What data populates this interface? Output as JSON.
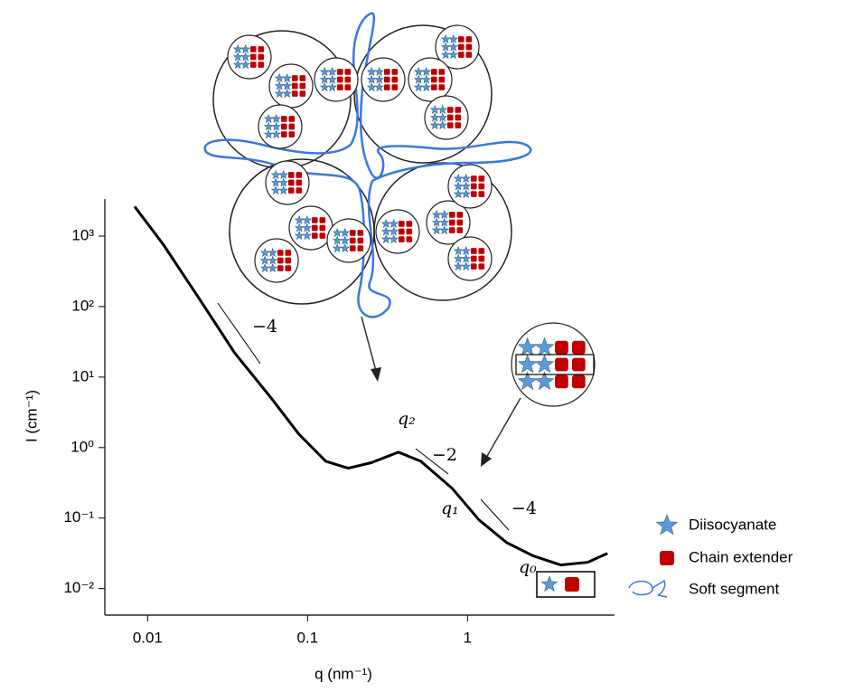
{
  "chart_data": {
    "type": "line",
    "xscale": "log",
    "yscale": "log",
    "color": "#000000",
    "x": [
      0.0083,
      0.0125,
      0.021,
      0.035,
      0.059,
      0.088,
      0.13,
      0.18,
      0.25,
      0.37,
      0.51,
      0.8,
      1.18,
      1.75,
      2.58,
      3.82,
      5.64,
      7.5
    ],
    "values": [
      2630,
      767,
      130,
      22,
      5.1,
      1.56,
      0.64,
      0.51,
      0.61,
      0.86,
      0.64,
      0.265,
      0.094,
      0.045,
      0.029,
      0.0216,
      0.0236,
      0.0316
    ],
    "xlim": [
      0.0054,
      8.3
    ],
    "ylim": [
      0.0042,
      3360
    ],
    "xticks": [
      0.01,
      0.1,
      1
    ],
    "yticks": [
      {
        "value": 1000,
        "label": "10³"
      },
      {
        "value": 100,
        "label": "10²"
      },
      {
        "value": 10,
        "label": "10¹"
      },
      {
        "value": 1,
        "label": "10⁰"
      },
      {
        "value": 0.1,
        "label": "10⁻¹"
      },
      {
        "value": 0.01,
        "label": "10⁻²"
      }
    ],
    "xlabel": "q (nm⁻¹)",
    "ylabel": "I (cm⁻¹)",
    "annotations": [
      "−4",
      "q₂",
      "−2",
      "q₁",
      "−4",
      "q₀"
    ],
    "legend": [
      "Diisocyanate",
      "Chain extender",
      "Soft segment"
    ]
  }
}
